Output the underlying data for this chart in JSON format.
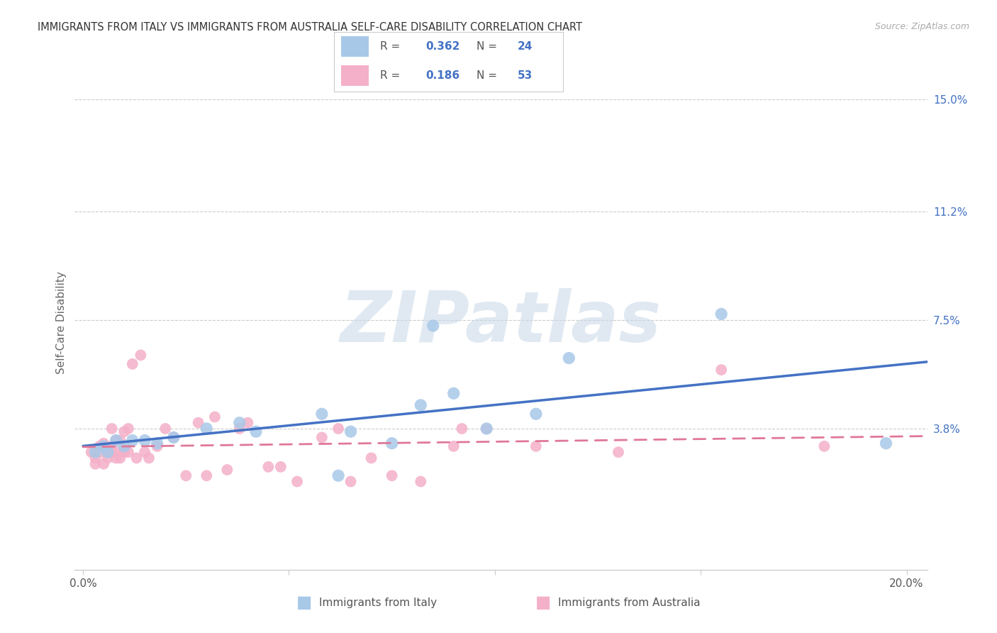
{
  "title": "IMMIGRANTS FROM ITALY VS IMMIGRANTS FROM AUSTRALIA SELF-CARE DISABILITY CORRELATION CHART",
  "source": "Source: ZipAtlas.com",
  "xlabel_italy": "Immigrants from Italy",
  "xlabel_australia": "Immigrants from Australia",
  "ylabel": "Self-Care Disability",
  "xlim": [
    -0.002,
    0.205
  ],
  "ylim": [
    -0.01,
    0.158
  ],
  "xticks": [
    0.0,
    0.05,
    0.1,
    0.15,
    0.2
  ],
  "xtick_labels": [
    "0.0%",
    "",
    "",
    "",
    "20.0%"
  ],
  "ytick_vals": [
    0.038,
    0.075,
    0.112,
    0.15
  ],
  "ytick_labels": [
    "3.8%",
    "7.5%",
    "11.2%",
    "15.0%"
  ],
  "italy_R": 0.362,
  "italy_N": 24,
  "australia_R": 0.186,
  "australia_N": 53,
  "italy_color": "#a8c8e8",
  "italy_line_color": "#4472c4",
  "australia_color": "#f4b0c8",
  "australia_line_color": "#e07898",
  "watermark": "ZIPatlas",
  "italy_x": [
    0.003,
    0.005,
    0.006,
    0.008,
    0.01,
    0.012,
    0.015,
    0.018,
    0.022,
    0.03,
    0.038,
    0.042,
    0.058,
    0.062,
    0.065,
    0.075,
    0.082,
    0.09,
    0.098,
    0.11,
    0.118,
    0.155,
    0.195,
    0.085
  ],
  "italy_y": [
    0.03,
    0.032,
    0.03,
    0.034,
    0.032,
    0.034,
    0.034,
    0.033,
    0.035,
    0.038,
    0.04,
    0.037,
    0.043,
    0.022,
    0.037,
    0.033,
    0.046,
    0.05,
    0.038,
    0.043,
    0.062,
    0.077,
    0.033,
    0.073
  ],
  "australia_x": [
    0.002,
    0.003,
    0.003,
    0.004,
    0.004,
    0.005,
    0.005,
    0.006,
    0.006,
    0.007,
    0.007,
    0.007,
    0.008,
    0.008,
    0.008,
    0.009,
    0.009,
    0.01,
    0.01,
    0.01,
    0.011,
    0.011,
    0.012,
    0.013,
    0.014,
    0.015,
    0.016,
    0.018,
    0.02,
    0.022,
    0.025,
    0.028,
    0.03,
    0.032,
    0.035,
    0.038,
    0.04,
    0.045,
    0.048,
    0.052,
    0.058,
    0.062,
    0.065,
    0.07,
    0.075,
    0.082,
    0.09,
    0.098,
    0.11,
    0.13,
    0.155,
    0.18,
    0.092
  ],
  "australia_y": [
    0.03,
    0.028,
    0.026,
    0.03,
    0.032,
    0.026,
    0.033,
    0.03,
    0.028,
    0.03,
    0.032,
    0.038,
    0.03,
    0.034,
    0.028,
    0.034,
    0.028,
    0.031,
    0.037,
    0.03,
    0.03,
    0.038,
    0.06,
    0.028,
    0.063,
    0.03,
    0.028,
    0.032,
    0.038,
    0.035,
    0.022,
    0.04,
    0.022,
    0.042,
    0.024,
    0.038,
    0.04,
    0.025,
    0.025,
    0.02,
    0.035,
    0.038,
    0.02,
    0.028,
    0.022,
    0.02,
    0.032,
    0.038,
    0.032,
    0.03,
    0.058,
    0.032,
    0.038
  ]
}
